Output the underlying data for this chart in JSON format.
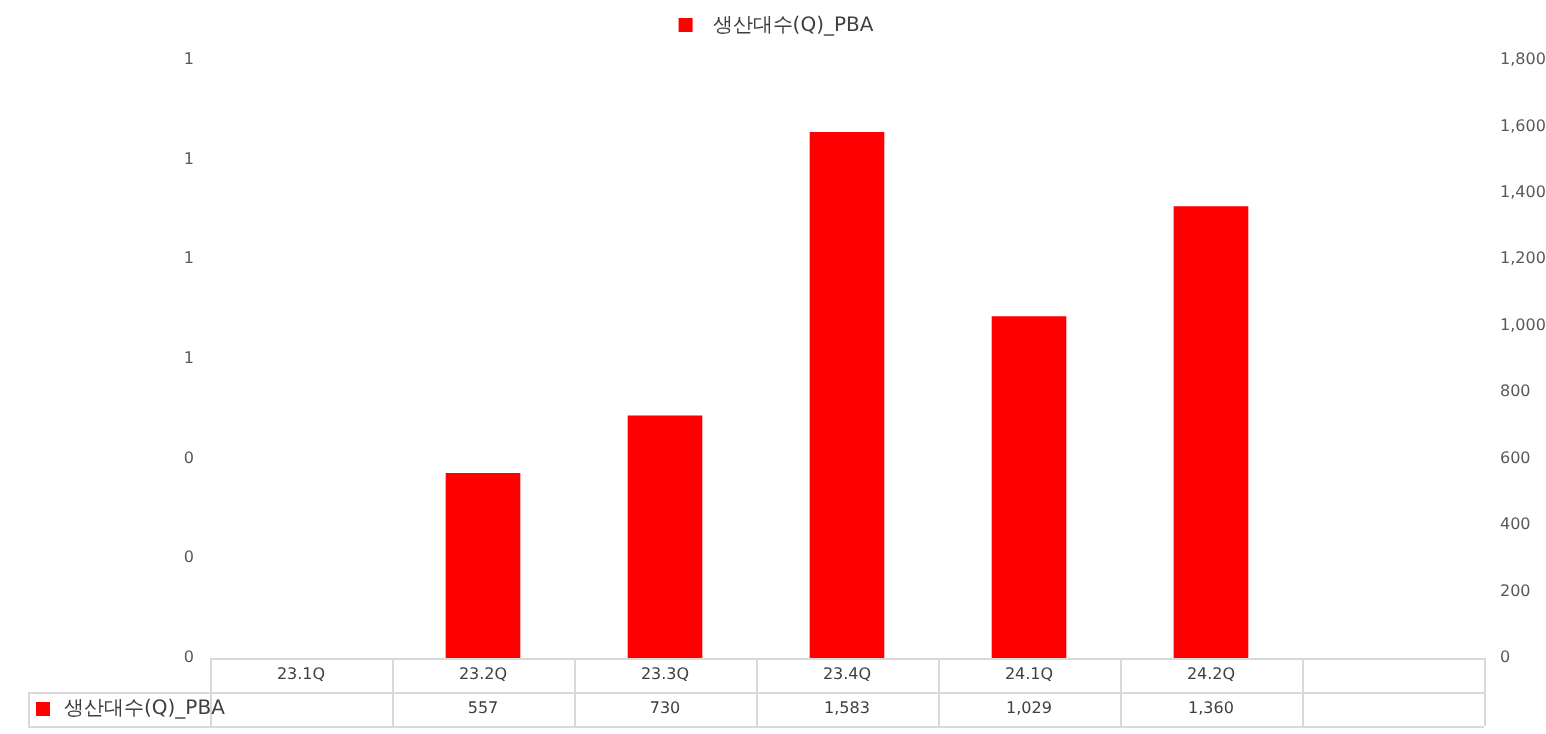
{
  "chart_data": {
    "type": "bar",
    "categories": [
      "23.1Q",
      "23.2Q",
      "23.3Q",
      "23.4Q",
      "24.1Q",
      "24.2Q",
      null
    ],
    "series": [
      {
        "name": "생산대수(Q)_PBA",
        "color": "#ff0000",
        "axis": "y2",
        "values": [
          null,
          557,
          730,
          1583,
          1029,
          1360,
          null
        ],
        "value_labels": [
          null,
          "557",
          "730",
          "1,583",
          "1,029",
          "1,360",
          null
        ]
      }
    ],
    "ylim": [
      0,
      1.2
    ],
    "yticks": [
      {
        "value": 0,
        "label": "0"
      },
      {
        "value": 0.2,
        "label": "0"
      },
      {
        "value": 0.4,
        "label": "0"
      },
      {
        "value": 0.6,
        "label": "1"
      },
      {
        "value": 0.8,
        "label": "1"
      },
      {
        "value": 1,
        "label": "1"
      },
      {
        "value": 1.2,
        "label": "1"
      }
    ],
    "y2lim": [
      0,
      1800
    ],
    "y2ticks": [
      0,
      200,
      400,
      600,
      800,
      {
        "value": 1000,
        "label": "1,000"
      },
      {
        "value": 1200,
        "label": "1,200"
      },
      {
        "value": 1400,
        "label": "1,400"
      },
      {
        "value": 1600,
        "label": "1,600"
      },
      {
        "value": 1800,
        "label": "1,800"
      }
    ],
    "legend": "top",
    "grid": false
  }
}
